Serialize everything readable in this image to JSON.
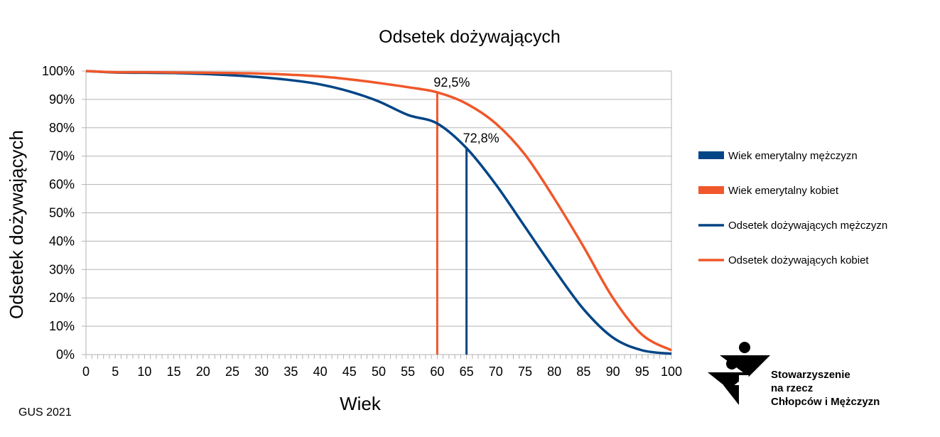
{
  "chart_data": {
    "type": "line",
    "title": "Odsetek dożywających",
    "xlabel": "Wiek",
    "ylabel": "Odsetek dożywających",
    "xlim": [
      0,
      100
    ],
    "ylim": [
      0,
      100
    ],
    "x_ticks": [
      "0",
      "5",
      "10",
      "15",
      "20",
      "25",
      "30",
      "35",
      "40",
      "45",
      "50",
      "55",
      "60",
      "65",
      "70",
      "75",
      "80",
      "85",
      "90",
      "95",
      "100"
    ],
    "y_ticks": [
      "0%",
      "10%",
      "20%",
      "30%",
      "40%",
      "50%",
      "60%",
      "70%",
      "80%",
      "90%",
      "100%"
    ],
    "grid": true,
    "legend_position": "right",
    "x": [
      0,
      5,
      10,
      15,
      20,
      25,
      30,
      35,
      40,
      45,
      50,
      55,
      60,
      65,
      70,
      75,
      80,
      85,
      90,
      95,
      100
    ],
    "series": [
      {
        "name": "Odsetek dożywających mężczyzn",
        "color": "#004586",
        "values": [
          100,
          99.5,
          99.4,
          99.3,
          99,
          98.5,
          97.8,
          96.8,
          95.3,
          92.8,
          89.3,
          84.5,
          81.5,
          72.8,
          60,
          45,
          30,
          16,
          6,
          1.5,
          0.3
        ]
      },
      {
        "name": "Odsetek dożywających kobiet",
        "color": "#f0572a",
        "values": [
          100,
          99.6,
          99.6,
          99.5,
          99.4,
          99.3,
          99.1,
          98.7,
          98.1,
          97.1,
          95.8,
          94.3,
          92.5,
          88.5,
          81.5,
          70.5,
          55,
          38,
          20,
          7,
          1.5
        ]
      }
    ],
    "retirement_lines": [
      {
        "name": "Wiek emerytalny mężczyzn",
        "x": 65,
        "color": "#004586",
        "label": "72,8%",
        "y": 72.8
      },
      {
        "name": "Wiek emerytalny kobiet",
        "x": 60,
        "color": "#f0572a",
        "label": "92,5%",
        "y": 92.5
      }
    ],
    "legend": [
      {
        "label": "Wiek emerytalny mężczyzn",
        "color": "#004586",
        "kind": "bar"
      },
      {
        "label": "Wiek emerytalny kobiet",
        "color": "#f0572a",
        "kind": "bar"
      },
      {
        "label": "Odsetek dożywających mężczyzn",
        "color": "#004586",
        "kind": "line"
      },
      {
        "label": "Odsetek dożywających kobiet",
        "color": "#f0572a",
        "kind": "line"
      }
    ]
  },
  "source": "GUS 2021",
  "logo": {
    "line1": "Stowarzyszenie",
    "line2": "na rzecz",
    "line3": "Chłopców i Mężczyzn"
  }
}
